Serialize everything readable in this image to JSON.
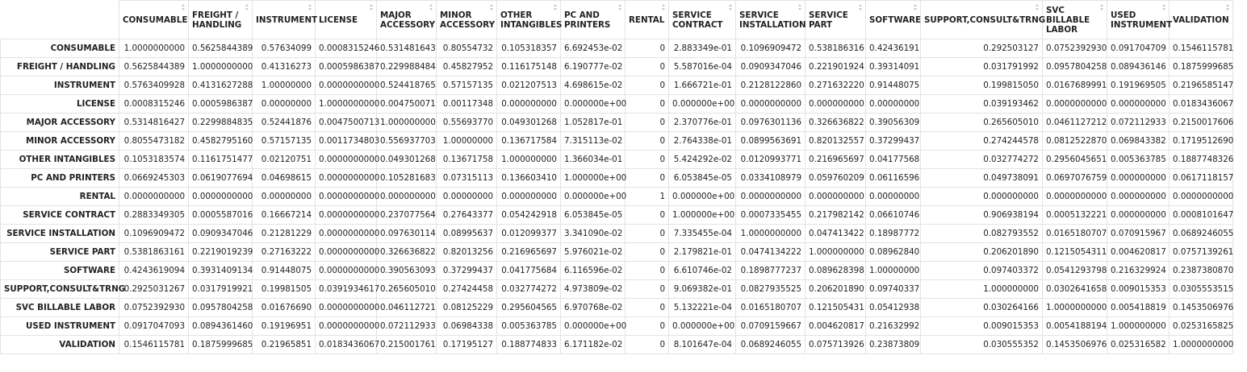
{
  "table": {
    "columns": [
      "CONSUMABLE",
      "FREIGHT / HANDLING",
      "INSTRUMENT",
      "LICENSE",
      "MAJOR ACCESSORY",
      "MINOR ACCESSORY",
      "OTHER INTANGIBLES",
      "PC AND PRINTERS",
      "RENTAL",
      "SERVICE CONTRACT",
      "SERVICE INSTALLATION",
      "SERVICE PART",
      "SOFTWARE",
      "SUPPORT,CONSULT&TRNG",
      "SVC BILLABLE LABOR",
      "USED INSTRUMENT",
      "VALIDATION"
    ],
    "rows": [
      {
        "label": "CONSUMABLE",
        "cells": [
          "1.0000000000",
          "0.5625844389",
          "0.57634099",
          "0.0008315246",
          "0.531481643",
          "0.80554732",
          "0.105318357",
          "6.692453e-02",
          "0",
          "2.883349e-01",
          "0.1096909472",
          "0.538186316",
          "0.42436191",
          "0.292503127",
          "0.0752392930",
          "0.091704709",
          "0.1546115781"
        ]
      },
      {
        "label": "FREIGHT / HANDLING",
        "cells": [
          "0.5625844389",
          "1.0000000000",
          "0.41316273",
          "0.0005986387",
          "0.229988484",
          "0.45827952",
          "0.116175148",
          "6.190777e-02",
          "0",
          "5.587016e-04",
          "0.0909347046",
          "0.221901924",
          "0.39314091",
          "0.031791992",
          "0.0957804258",
          "0.089436146",
          "0.1875999685"
        ]
      },
      {
        "label": "INSTRUMENT",
        "cells": [
          "0.5763409928",
          "0.4131627288",
          "1.00000000",
          "0.0000000000",
          "0.524418765",
          "0.57157135",
          "0.021207513",
          "4.698615e-02",
          "0",
          "1.666721e-01",
          "0.2128122860",
          "0.271632220",
          "0.91448075",
          "0.199815050",
          "0.0167689991",
          "0.191969505",
          "0.2196585147"
        ]
      },
      {
        "label": "LICENSE",
        "cells": [
          "0.0008315246",
          "0.0005986387",
          "0.00000000",
          "1.0000000000",
          "0.004750071",
          "0.00117348",
          "0.000000000",
          "0.000000e+00",
          "0",
          "0.000000e+00",
          "0.0000000000",
          "0.000000000",
          "0.00000000",
          "0.039193462",
          "0.0000000000",
          "0.000000000",
          "0.0183436067"
        ]
      },
      {
        "label": "MAJOR ACCESSORY",
        "cells": [
          "0.5314816427",
          "0.2299884835",
          "0.52441876",
          "0.0047500713",
          "1.000000000",
          "0.55693770",
          "0.049301268",
          "1.052817e-01",
          "0",
          "2.370776e-01",
          "0.0976301136",
          "0.326636822",
          "0.39056309",
          "0.265605010",
          "0.0461127212",
          "0.072112933",
          "0.2150017606"
        ]
      },
      {
        "label": "MINOR ACCESSORY",
        "cells": [
          "0.8055473182",
          "0.4582795160",
          "0.57157135",
          "0.0011734803",
          "0.556937703",
          "1.00000000",
          "0.136717584",
          "7.315113e-02",
          "0",
          "2.764338e-01",
          "0.0899563691",
          "0.820132557",
          "0.37299437",
          "0.274244578",
          "0.0812522870",
          "0.069843382",
          "0.1719512690"
        ]
      },
      {
        "label": "OTHER INTANGIBLES",
        "cells": [
          "0.1053183574",
          "0.1161751477",
          "0.02120751",
          "0.0000000000",
          "0.049301268",
          "0.13671758",
          "1.000000000",
          "1.366034e-01",
          "0",
          "5.424292e-02",
          "0.0120993771",
          "0.216965697",
          "0.04177568",
          "0.032774272",
          "0.2956045651",
          "0.005363785",
          "0.1887748326"
        ]
      },
      {
        "label": "PC AND PRINTERS",
        "cells": [
          "0.0669245303",
          "0.0619077694",
          "0.04698615",
          "0.0000000000",
          "0.105281683",
          "0.07315113",
          "0.136603410",
          "1.000000e+00",
          "0",
          "6.053845e-05",
          "0.0334108979",
          "0.059760209",
          "0.06116596",
          "0.049738091",
          "0.0697076759",
          "0.000000000",
          "0.0617118157"
        ]
      },
      {
        "label": "RENTAL",
        "cells": [
          "0.0000000000",
          "0.0000000000",
          "0.00000000",
          "0.0000000000",
          "0.000000000",
          "0.00000000",
          "0.000000000",
          "0.000000e+00",
          "1",
          "0.000000e+00",
          "0.0000000000",
          "0.000000000",
          "0.00000000",
          "0.000000000",
          "0.0000000000",
          "0.000000000",
          "0.0000000000"
        ]
      },
      {
        "label": "SERVICE CONTRACT",
        "cells": [
          "0.2883349305",
          "0.0005587016",
          "0.16667214",
          "0.0000000000",
          "0.237077564",
          "0.27643377",
          "0.054242918",
          "6.053845e-05",
          "0",
          "1.000000e+00",
          "0.0007335455",
          "0.217982142",
          "0.06610746",
          "0.906938194",
          "0.0005132221",
          "0.000000000",
          "0.0008101647"
        ]
      },
      {
        "label": "SERVICE INSTALLATION",
        "cells": [
          "0.1096909472",
          "0.0909347046",
          "0.21281229",
          "0.0000000000",
          "0.097630114",
          "0.08995637",
          "0.012099377",
          "3.341090e-02",
          "0",
          "7.335455e-04",
          "1.0000000000",
          "0.047413422",
          "0.18987772",
          "0.082793552",
          "0.0165180707",
          "0.070915967",
          "0.0689246055"
        ]
      },
      {
        "label": "SERVICE PART",
        "cells": [
          "0.5381863161",
          "0.2219019239",
          "0.27163222",
          "0.0000000000",
          "0.326636822",
          "0.82013256",
          "0.216965697",
          "5.976021e-02",
          "0",
          "2.179821e-01",
          "0.0474134222",
          "1.000000000",
          "0.08962840",
          "0.206201890",
          "0.1215054311",
          "0.004620817",
          "0.0757139261"
        ]
      },
      {
        "label": "SOFTWARE",
        "cells": [
          "0.4243619094",
          "0.3931409134",
          "0.91448075",
          "0.0000000000",
          "0.390563093",
          "0.37299437",
          "0.041775684",
          "6.116596e-02",
          "0",
          "6.610746e-02",
          "0.1898777237",
          "0.089628398",
          "1.00000000",
          "0.097403372",
          "0.0541293798",
          "0.216329924",
          "0.2387380870"
        ]
      },
      {
        "label": "SUPPORT,CONSULT&TRNG",
        "cells": [
          "0.2925031267",
          "0.0317919921",
          "0.19981505",
          "0.0391934617",
          "0.265605010",
          "0.27424458",
          "0.032774272",
          "4.973809e-02",
          "0",
          "9.069382e-01",
          "0.0827935525",
          "0.206201890",
          "0.09740337",
          "1.000000000",
          "0.0302641658",
          "0.009015353",
          "0.0305553515"
        ]
      },
      {
        "label": "SVC BILLABLE LABOR",
        "cells": [
          "0.0752392930",
          "0.0957804258",
          "0.01676690",
          "0.0000000000",
          "0.046112721",
          "0.08125229",
          "0.295604565",
          "6.970768e-02",
          "0",
          "5.132221e-04",
          "0.0165180707",
          "0.121505431",
          "0.05412938",
          "0.030264166",
          "1.0000000000",
          "0.005418819",
          "0.1453506976"
        ]
      },
      {
        "label": "USED INSTRUMENT",
        "cells": [
          "0.0917047093",
          "0.0894361460",
          "0.19196951",
          "0.0000000000",
          "0.072112933",
          "0.06984338",
          "0.005363785",
          "0.000000e+00",
          "0",
          "0.000000e+00",
          "0.0709159667",
          "0.004620817",
          "0.21632992",
          "0.009015353",
          "0.0054188194",
          "1.000000000",
          "0.0253165825"
        ]
      },
      {
        "label": "VALIDATION",
        "cells": [
          "0.1546115781",
          "0.1875999685",
          "0.21965851",
          "0.0183436067",
          "0.215001761",
          "0.17195127",
          "0.188774833",
          "6.171182e-02",
          "0",
          "8.101647e-04",
          "0.0689246055",
          "0.075713926",
          "0.23873809",
          "0.030555352",
          "0.1453506976",
          "0.025316582",
          "1.0000000000"
        ]
      }
    ]
  }
}
